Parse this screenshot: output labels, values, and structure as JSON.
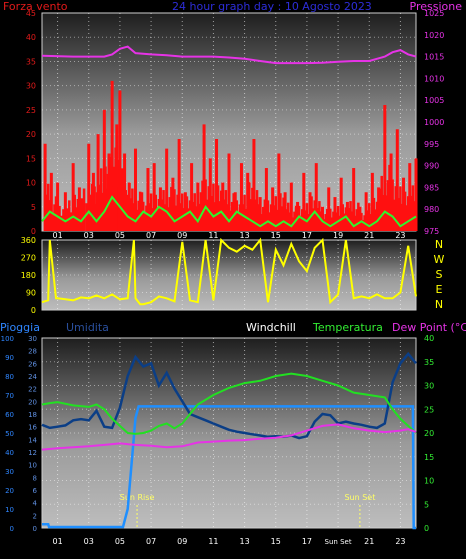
{
  "chart_data": [
    {
      "type": "line",
      "title": "24 hour graph day : 10 Agosto 2023",
      "left_axis_label": "Forza vento",
      "right_axis_label": "Pressione",
      "x_ticks": [
        "01",
        "03",
        "05",
        "07",
        "09",
        "11",
        "13",
        "15",
        "17",
        "19",
        "21",
        "23"
      ],
      "left_ticks": [
        "0",
        "5",
        "10",
        "15",
        "20",
        "25",
        "30",
        "35",
        "40",
        "45"
      ],
      "right_ticks": [
        "975",
        "980",
        "985",
        "990",
        "995",
        "1000",
        "1005",
        "1010",
        "1015",
        "1020",
        "1025"
      ],
      "left_range": [
        0,
        45
      ],
      "right_range": [
        975,
        1025
      ],
      "pressure": {
        "x": [
          0,
          2,
          4,
          4.5,
          5,
          5.5,
          6,
          7,
          8,
          9,
          10,
          11,
          12,
          13,
          14,
          15,
          16,
          17,
          18,
          19,
          20,
          21,
          22,
          22.5,
          23,
          23.5,
          24
        ],
        "y": [
          1015.2,
          1015,
          1015,
          1015.5,
          1016.8,
          1017.3,
          1015.8,
          1015.5,
          1015.3,
          1015,
          1015,
          1015,
          1014.8,
          1014.5,
          1014,
          1013.5,
          1013.5,
          1013.5,
          1013.6,
          1013.8,
          1014,
          1014,
          1015,
          1016,
          1016.5,
          1015.5,
          1015
        ]
      },
      "wind_avg": {
        "x": [
          0,
          0.5,
          1,
          1.5,
          2,
          2.5,
          3,
          3.5,
          4,
          4.5,
          5,
          5.5,
          6,
          6.5,
          7,
          7.5,
          8,
          8.5,
          9,
          9.5,
          10,
          10.5,
          11,
          11.5,
          12,
          12.5,
          13,
          13.5,
          14,
          14.5,
          15,
          15.5,
          16,
          16.5,
          17,
          17.5,
          18,
          18.5,
          19,
          19.5,
          20,
          20.5,
          21,
          21.5,
          22,
          22.5,
          23,
          23.5,
          24
        ],
        "y": [
          2,
          4,
          3,
          2,
          3,
          2,
          4,
          2,
          4,
          7,
          5,
          3,
          2,
          4,
          3,
          5,
          4,
          2,
          3,
          4,
          2,
          5,
          3,
          4,
          2,
          4,
          3,
          2,
          1,
          2,
          1,
          2,
          1,
          3,
          2,
          4,
          2,
          1,
          2,
          3,
          1,
          2,
          1,
          2,
          4,
          3,
          1,
          2,
          3
        ]
      },
      "wind_gust_peaks": {
        "x": [
          0.2,
          0.6,
          1,
          1.5,
          2,
          2.4,
          3,
          3.3,
          3.6,
          4,
          4.3,
          4.5,
          4.8,
          5,
          5.3,
          5.6,
          6,
          6.4,
          6.8,
          7.2,
          7.6,
          8,
          8.4,
          8.8,
          9.2,
          9.6,
          10,
          10.4,
          10.8,
          11.2,
          11.6,
          12,
          12.4,
          12.8,
          13.2,
          13.6,
          14,
          14.4,
          14.8,
          15.2,
          15.6,
          16,
          16.4,
          16.8,
          17.2,
          17.6,
          18,
          18.4,
          18.8,
          19.2,
          19.6,
          20,
          20.4,
          20.8,
          21.2,
          21.6,
          22,
          22.4,
          22.8,
          23.2,
          23.6,
          24
        ],
        "y": [
          18,
          12,
          10,
          8,
          14,
          9,
          18,
          12,
          20,
          25,
          16,
          31,
          22,
          29,
          16,
          10,
          17,
          8,
          13,
          14,
          9,
          17,
          11,
          19,
          8,
          14,
          10,
          22,
          15,
          19,
          10,
          16,
          8,
          14,
          12,
          19,
          7,
          13,
          9,
          16,
          8,
          10,
          6,
          12,
          8,
          14,
          5,
          9,
          7,
          11,
          6,
          13,
          5,
          8,
          12,
          9,
          26,
          16,
          21,
          11,
          14,
          15
        ]
      }
    },
    {
      "type": "line",
      "title": "",
      "left_ticks": [
        "0",
        "90",
        "180",
        "270",
        "360"
      ],
      "direction_labels": [
        "N",
        "W",
        "S",
        "E",
        "N"
      ],
      "y_range": [
        0,
        360
      ],
      "wind_direction": {
        "x": [
          0,
          0.4,
          0.5,
          0.9,
          1,
          1.5,
          2,
          2.5,
          3,
          3.5,
          4,
          4.5,
          5,
          5.5,
          5.9,
          6,
          6.3,
          6.5,
          7,
          7.5,
          8,
          8.5,
          9,
          9.5,
          10,
          10.5,
          11,
          11.5,
          12,
          12.5,
          13,
          13.5,
          14,
          14.5,
          15,
          15.5,
          16,
          16.5,
          17,
          17.5,
          18,
          18.5,
          19,
          19.5,
          20,
          20.5,
          21,
          21.5,
          22,
          22.5,
          23,
          23.5,
          24
        ],
        "y": [
          40,
          50,
          360,
          60,
          60,
          55,
          50,
          65,
          60,
          75,
          60,
          80,
          55,
          60,
          360,
          60,
          30,
          30,
          40,
          70,
          60,
          45,
          350,
          50,
          40,
          360,
          50,
          360,
          320,
          300,
          330,
          310,
          360,
          40,
          310,
          230,
          340,
          250,
          200,
          320,
          360,
          40,
          80,
          360,
          60,
          70,
          60,
          80,
          60,
          60,
          90,
          330,
          70
        ]
      }
    },
    {
      "type": "line",
      "title": "",
      "labels": {
        "rain": "Pioggia",
        "humidity": "Umidita",
        "windchill": "Windchill",
        "temperature": "Temperatura",
        "dewpoint": "Dew Point (°C)"
      },
      "left_rain_ticks": [
        "0",
        "10",
        "20",
        "30",
        "40",
        "50",
        "60",
        "70",
        "80",
        "90",
        "100"
      ],
      "left_hum_ticks": [
        "0",
        "2",
        "4",
        "6",
        "8",
        "10",
        "12",
        "14",
        "16",
        "18",
        "20",
        "22",
        "24",
        "26",
        "28",
        "30"
      ],
      "right_ticks": [
        "0",
        "5",
        "10",
        "15",
        "20",
        "25",
        "30",
        "35",
        "40"
      ],
      "rain_range": [
        0,
        100
      ],
      "hum_range": [
        0,
        30
      ],
      "temp_range": [
        0,
        40
      ],
      "annotations": [
        {
          "text": "Sun Rise",
          "x": 6.1
        },
        {
          "text": "Sun Set",
          "x": 20.4
        }
      ],
      "x_ticks": [
        "01",
        "03",
        "05",
        "07",
        "09",
        "11",
        "13",
        "15",
        "17",
        "Sun Set",
        "21",
        "23"
      ],
      "rain": {
        "x": [
          0,
          0.4,
          0.45,
          5.2,
          5.5,
          6,
          6.2,
          23.8,
          23.85,
          24
        ],
        "y": [
          2,
          2,
          0.5,
          0.5,
          10,
          58,
          64,
          64,
          0,
          0
        ]
      },
      "humidity": {
        "x": [
          0,
          0.5,
          1,
          1.5,
          2,
          2.5,
          3,
          3.5,
          4,
          4.5,
          5,
          5.5,
          6,
          6.5,
          7,
          7.5,
          8,
          8.5,
          9,
          9.5,
          10,
          10.5,
          11,
          11.5,
          12,
          12.5,
          13,
          13.5,
          14,
          14.5,
          15,
          15.5,
          16,
          16.5,
          17,
          17.5,
          18,
          18.5,
          19,
          19.5,
          20,
          20.5,
          21,
          21.5,
          22,
          22.5,
          23,
          23.5,
          24
        ],
        "y": [
          16.3,
          15.8,
          16,
          16.2,
          17,
          17.2,
          17,
          18.5,
          16,
          15.8,
          19,
          24,
          27,
          25.5,
          26,
          22.5,
          24.5,
          22,
          20,
          18,
          17.5,
          17,
          16.5,
          16,
          15.5,
          15.2,
          15,
          14.8,
          14.6,
          14.4,
          14.5,
          14.4,
          14.6,
          14.2,
          14.5,
          16.8,
          18,
          17.8,
          16.5,
          16.8,
          16.5,
          16.3,
          16,
          15.8,
          16.5,
          23,
          26,
          27.5,
          26
        ]
      },
      "temperature": {
        "x": [
          0,
          0.5,
          1,
          2,
          3,
          3.5,
          4,
          4.5,
          5,
          5.5,
          6,
          6.5,
          7,
          7.5,
          8,
          8.5,
          9,
          10,
          11,
          12,
          13,
          14,
          15,
          16,
          17,
          18,
          19,
          20,
          21,
          22,
          22.5,
          23,
          23.5,
          24
        ],
        "y": [
          26,
          26.3,
          26.5,
          25.8,
          25.5,
          26,
          25,
          23,
          21.5,
          20,
          19.8,
          20,
          20.5,
          21.5,
          22,
          21,
          22,
          26,
          28,
          29.5,
          30.5,
          31,
          32,
          32.5,
          32,
          31,
          30,
          28.5,
          28,
          27.5,
          25,
          23,
          21.5,
          20
        ]
      },
      "dewpoint": {
        "x": [
          0,
          1,
          2,
          3,
          4,
          5,
          6,
          7,
          8,
          9,
          10,
          11,
          12,
          13,
          14,
          15,
          16,
          17,
          18,
          19,
          20,
          21,
          22,
          23,
          23.5,
          24
        ],
        "y": [
          16.5,
          16.8,
          17,
          17.2,
          17.5,
          17.8,
          17.5,
          17.3,
          17,
          17.2,
          18,
          18.2,
          18.4,
          18.5,
          18.8,
          19,
          19.5,
          20.5,
          21.5,
          21.8,
          21,
          20.5,
          20.2,
          20.5,
          20.8,
          20.2
        ]
      }
    }
  ]
}
